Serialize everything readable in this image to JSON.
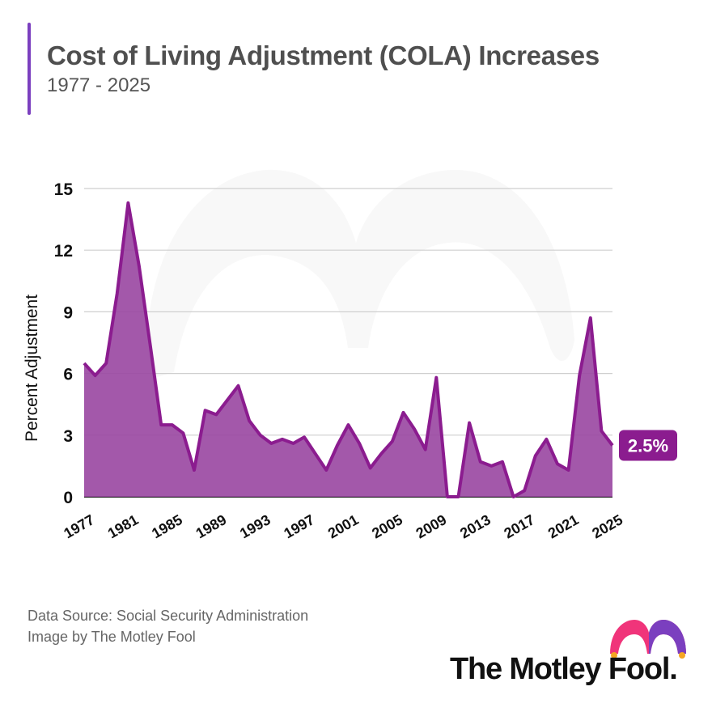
{
  "header": {
    "title": "Cost of Living Adjustment (COLA) Increases",
    "subtitle": "1977 - 2025"
  },
  "footer": {
    "source": "Data Source: Social Security Administration",
    "credit": "Image by The Motley Fool"
  },
  "logo": {
    "text": "The Motley Fool."
  },
  "colors": {
    "accent": "#7b3fbf",
    "area_fill": "#9b4aa3",
    "line": "#8b1c8f",
    "label_bg": "#8b1c8f",
    "grid": "#cfcfcf",
    "logo_pink": "#f0347a",
    "logo_purple": "#7b3fbf",
    "logo_orange": "#f5a623"
  },
  "chart_data": {
    "type": "area",
    "title": "Cost of Living Adjustment (COLA) Increases",
    "xlabel": "",
    "ylabel": "Percent Adjustment",
    "ylim": [
      0,
      15
    ],
    "yticks": [
      0,
      3,
      6,
      9,
      12,
      15
    ],
    "xlim": [
      1977,
      2025
    ],
    "xtick_labels": [
      "1977",
      "1981",
      "1985",
      "1989",
      "1993",
      "1997",
      "2001",
      "2005",
      "2009",
      "2013",
      "2017",
      "2021",
      "2025"
    ],
    "grid": true,
    "end_label": "2.5%",
    "x": [
      1977,
      1978,
      1979,
      1980,
      1981,
      1982,
      1983,
      1984,
      1985,
      1986,
      1987,
      1988,
      1989,
      1990,
      1991,
      1992,
      1993,
      1994,
      1995,
      1996,
      1997,
      1998,
      1999,
      2000,
      2001,
      2002,
      2003,
      2004,
      2005,
      2006,
      2007,
      2008,
      2009,
      2010,
      2011,
      2012,
      2013,
      2014,
      2015,
      2016,
      2017,
      2018,
      2019,
      2020,
      2021,
      2022,
      2023,
      2024,
      2025
    ],
    "values": [
      6.5,
      5.9,
      6.5,
      9.9,
      14.3,
      11.2,
      7.4,
      3.5,
      3.5,
      3.1,
      1.3,
      4.2,
      4.0,
      4.7,
      5.4,
      3.7,
      3.0,
      2.6,
      2.8,
      2.6,
      2.9,
      2.1,
      1.3,
      2.5,
      3.5,
      2.6,
      1.4,
      2.1,
      2.7,
      4.1,
      3.3,
      2.3,
      5.8,
      0.0,
      0.0,
      3.6,
      1.7,
      1.5,
      1.7,
      0.0,
      0.3,
      2.0,
      2.8,
      1.6,
      1.3,
      5.9,
      8.7,
      3.2,
      2.5
    ]
  }
}
